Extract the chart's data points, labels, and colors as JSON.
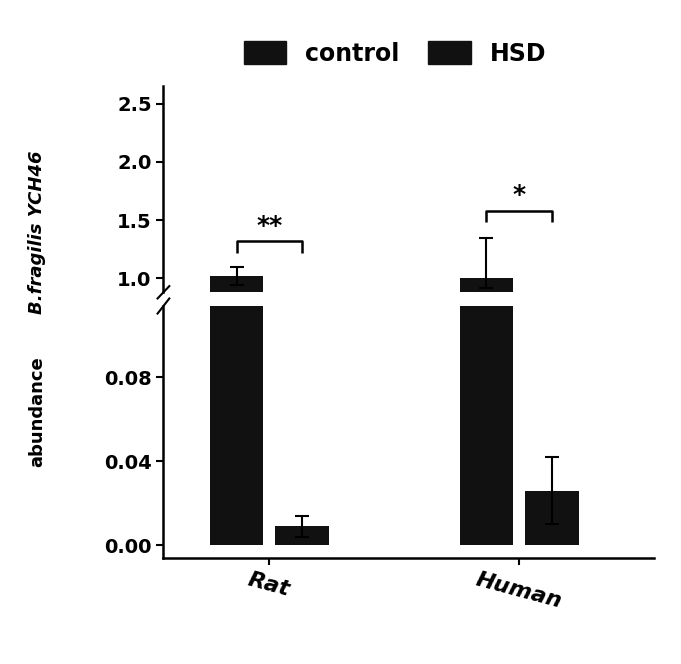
{
  "groups": [
    "Rat",
    "Human"
  ],
  "bar_width": 0.28,
  "control_values": [
    1.02,
    1.0
  ],
  "hsd_values": [
    0.009,
    0.026
  ],
  "control_errors_upper": [
    0.08,
    0.35
  ],
  "control_errors_lower": [
    0.08,
    0.08
  ],
  "hsd_errors_upper": [
    0.005,
    0.016
  ],
  "hsd_errors_lower": [
    0.005,
    0.016
  ],
  "bar_color": "#111111",
  "ylabel_italic": "B.fragilis YCH46",
  "ylabel_plain": "abundance",
  "legend_labels": [
    "control",
    "HSD"
  ],
  "significance_rat": "**",
  "significance_human": "*",
  "upper_ylim": [
    0.88,
    2.65
  ],
  "lower_ylim": [
    -0.006,
    0.114
  ],
  "upper_yticks": [
    1.0,
    1.5,
    2.0,
    2.5
  ],
  "lower_yticks": [
    0.0,
    0.04,
    0.08
  ],
  "background_color": "#ffffff",
  "group_positions": [
    1.0,
    2.3
  ]
}
